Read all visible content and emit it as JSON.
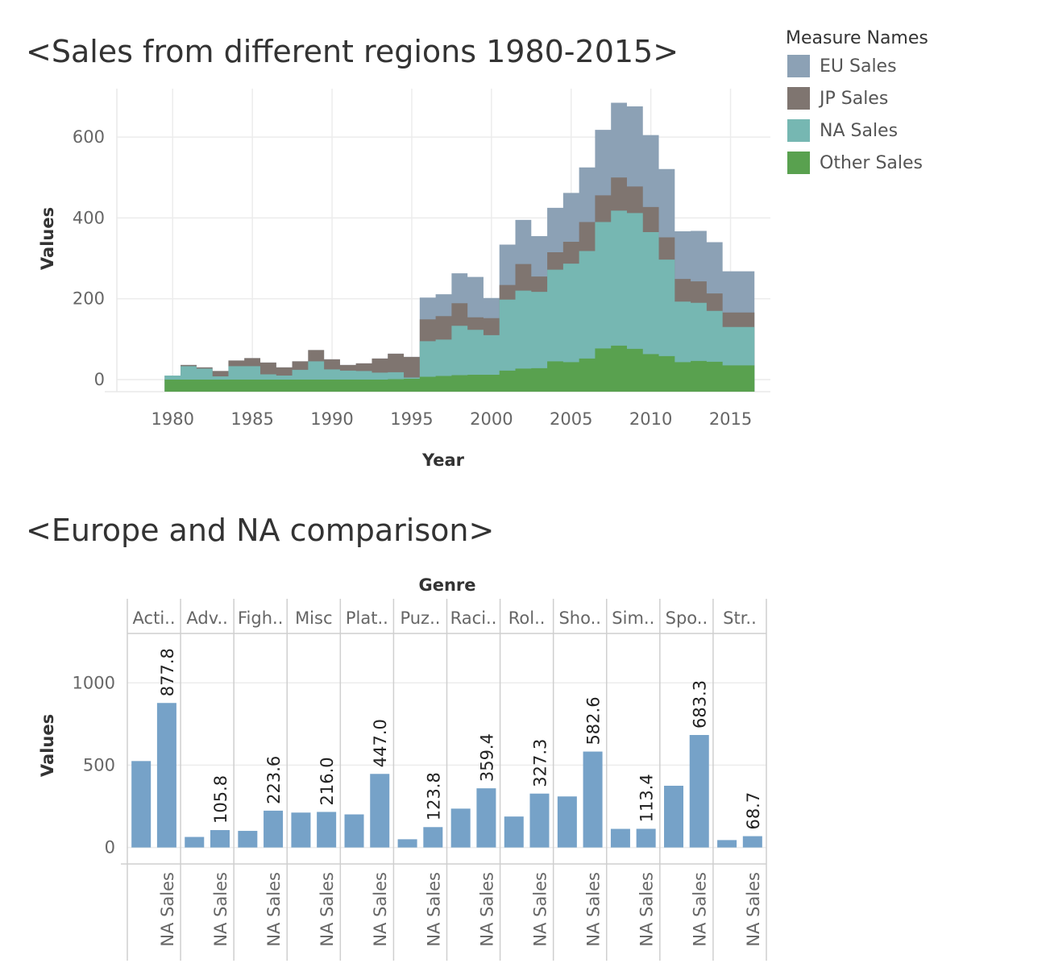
{
  "chart_data": [
    {
      "type": "area",
      "title": "<Sales from different regions 1980-2015>",
      "xlabel": "Year",
      "ylabel": "Values",
      "xlim": [
        1976.5,
        2017.5
      ],
      "ylim": [
        -30,
        720
      ],
      "x_ticks": [
        "1980",
        "1985",
        "1990",
        "1995",
        "2000",
        "2005",
        "2010",
        "2015"
      ],
      "y_ticks": [
        "0",
        "200",
        "400",
        "600"
      ],
      "grid": true,
      "stacked": true,
      "legend_title": "Measure Names",
      "legend_position": "top-right",
      "series": [
        {
          "name": "Other Sales",
          "color": "#59A14F"
        },
        {
          "name": "NA Sales",
          "color": "#76B7B2"
        },
        {
          "name": "JP Sales",
          "color": "#7F7570"
        },
        {
          "name": "EU Sales",
          "color": "#8CA1B5"
        }
      ],
      "legend_order": [
        "EU Sales",
        "JP Sales",
        "NA Sales",
        "Other Sales"
      ],
      "years": [
        1980,
        1981,
        1982,
        1983,
        1984,
        1985,
        1986,
        1987,
        1988,
        1989,
        1990,
        1991,
        1992,
        1993,
        1994,
        1995,
        1996,
        1997,
        1998,
        1999,
        2000,
        2001,
        2002,
        2003,
        2004,
        2005,
        2006,
        2007,
        2008,
        2009,
        2010,
        2011,
        2012,
        2013,
        2014,
        2015,
        2016
      ],
      "stack_values": {
        "Other Sales": [
          0,
          0,
          0,
          0,
          0,
          0,
          0,
          0,
          0,
          0,
          0,
          0,
          0,
          0,
          1,
          2,
          7,
          9,
          11,
          12,
          12,
          22,
          27,
          28,
          45,
          43,
          52,
          77,
          84,
          76,
          63,
          58,
          43,
          46,
          44,
          35,
          35
        ],
        "NA Sales": [
          10,
          33,
          27,
          8,
          33,
          33,
          13,
          10,
          24,
          45,
          25,
          22,
          21,
          17,
          18,
          5,
          95,
          99,
          133,
          123,
          110,
          198,
          220,
          217,
          272,
          287,
          318,
          390,
          418,
          412,
          365,
          297,
          193,
          190,
          170,
          130,
          130
        ],
        "JP Sales": [
          10,
          36,
          30,
          21,
          47,
          53,
          42,
          30,
          45,
          73,
          50,
          36,
          40,
          52,
          64,
          56,
          149,
          157,
          189,
          154,
          152,
          234,
          286,
          255,
          315,
          341,
          390,
          456,
          500,
          478,
          427,
          352,
          249,
          243,
          213,
          166,
          166
        ],
        "EU Sales": [
          10,
          36,
          30,
          21,
          47,
          53,
          42,
          30,
          45,
          73,
          50,
          36,
          40,
          52,
          64,
          56,
          203,
          211,
          263,
          254,
          202,
          334,
          395,
          355,
          425,
          462,
          525,
          618,
          685,
          676,
          605,
          521,
          367,
          368,
          340,
          268,
          268
        ]
      }
    },
    {
      "type": "bar",
      "title": "<Europe and NA comparison>",
      "column_header": "Genre",
      "ylabel": "Values",
      "ylim": [
        -100,
        1300
      ],
      "y_ticks": [
        "0",
        "500",
        "1000"
      ],
      "genres": [
        "Acti..",
        "Adv..",
        "Figh..",
        "Misc",
        "Plat..",
        "Puz..",
        "Raci..",
        "Rol..",
        "Sho..",
        "Sim..",
        "Spo..",
        "Str.."
      ],
      "measure_labels": [
        "",
        "NA Sales"
      ],
      "bar_color": "#76A2C8",
      "series": [
        {
          "values": [
            525,
            64,
            101,
            212,
            201,
            50,
            236,
            188,
            310,
            113,
            375,
            45
          ]
        },
        {
          "name": "NA Sales",
          "values": [
            877.8,
            105.8,
            223.6,
            216.0,
            447.0,
            123.8,
            359.4,
            327.3,
            582.6,
            113.4,
            683.3,
            68.7
          ]
        }
      ],
      "data_labels": [
        "877.8",
        "105.8",
        "223.6",
        "216.0",
        "447.0",
        "123.8",
        "359.4",
        "327.3",
        "582.6",
        "113.4",
        "683.3",
        "68.7"
      ],
      "legend_position": "none"
    }
  ]
}
